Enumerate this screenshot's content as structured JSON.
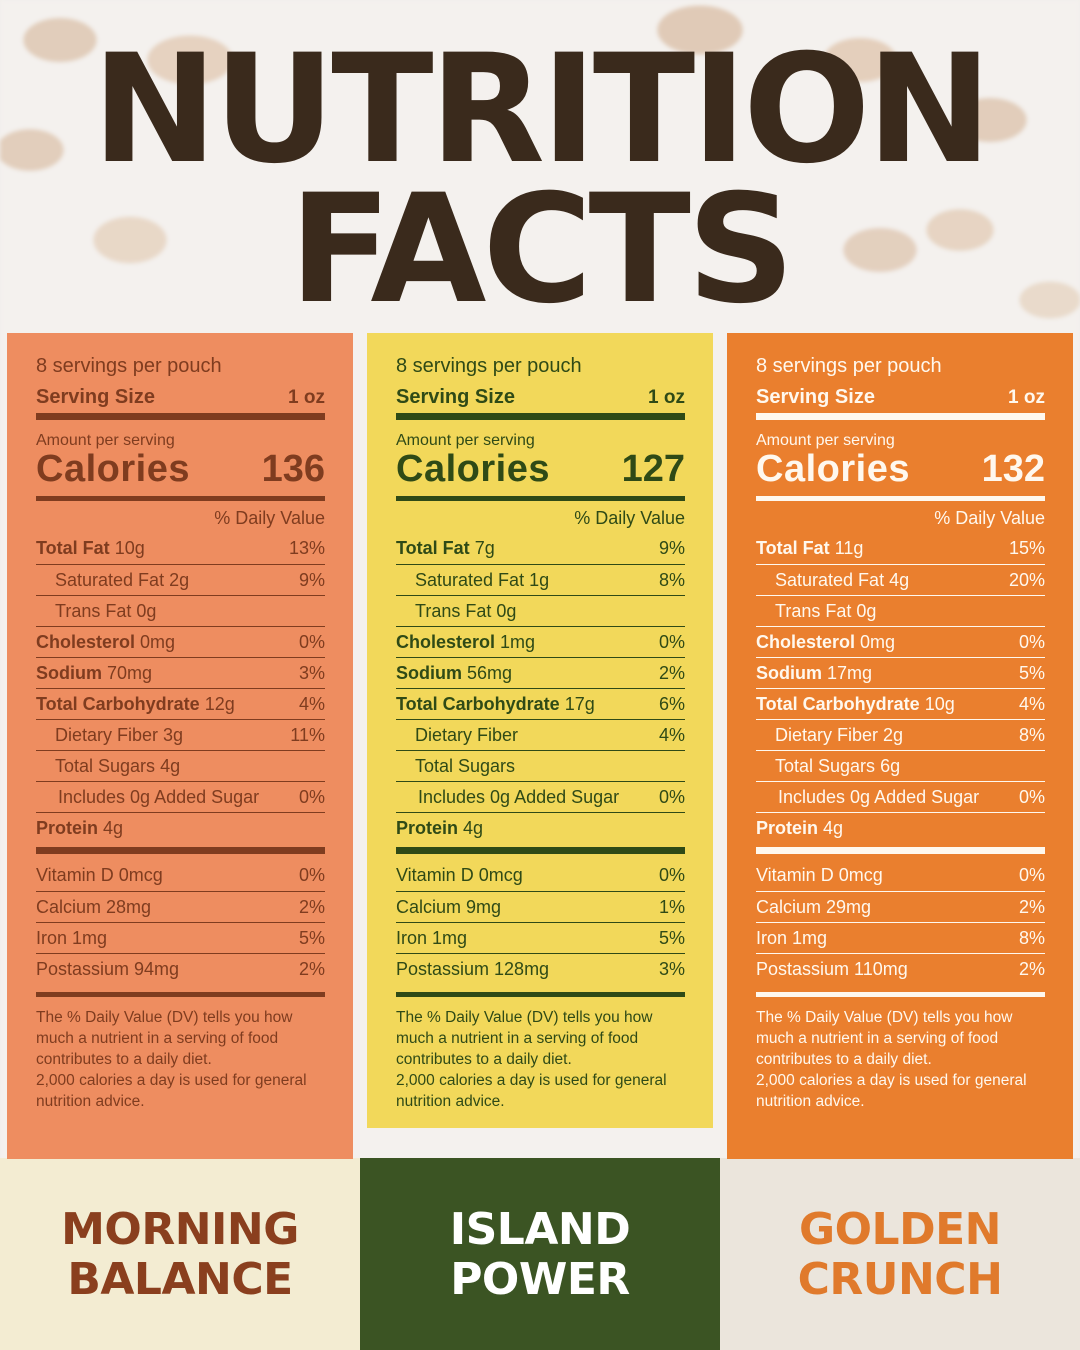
{
  "title": {
    "line1": "NUTRITION",
    "line2": "FACTS"
  },
  "labels": {
    "amount_per_serving": "Amount per serving",
    "calories": "Calories",
    "serving_size": "Serving Size",
    "daily_value": "% Daily Value",
    "footnote_1": "The % Daily Value (DV) tells you how much a nutrient in a serving of food contributes to a daily diet.",
    "footnote_2": "2,000 calories a day is used for general nutrition advice."
  },
  "products": [
    {
      "name_line1": "MORNING",
      "name_line2": "BALANCE",
      "servings": "8 servings per pouch",
      "serving_size": "1 oz",
      "calories": "136",
      "total_fat": "10g",
      "total_fat_dv": "13%",
      "sat_fat": "2g",
      "sat_fat_dv": "9%",
      "trans_fat": "0g",
      "cholesterol": "0mg",
      "cholesterol_dv": "0%",
      "sodium": "70mg",
      "sodium_dv": "3%",
      "carb": "12g",
      "carb_dv": "4%",
      "fiber": "3g",
      "fiber_dv": "11%",
      "sugars": "4g",
      "added_sugar": "Includes 0g Added Sugar",
      "added_sugar_dv": "0%",
      "protein": "4g",
      "vit_d": "Vitamin D 0mcg",
      "vit_d_dv": "0%",
      "calcium": "Calcium 28mg",
      "calcium_dv": "2%",
      "iron": "Iron 1mg",
      "iron_dv": "5%",
      "potassium": "Postassium 94mg",
      "potassium_dv": "2%"
    },
    {
      "name_line1": "ISLAND",
      "name_line2": "POWER",
      "servings": "8 servings per pouch",
      "serving_size": "1 oz",
      "calories": "127",
      "total_fat": "7g",
      "total_fat_dv": "9%",
      "sat_fat": "1g",
      "sat_fat_dv": "8%",
      "trans_fat": "0g",
      "cholesterol": "1mg",
      "cholesterol_dv": "0%",
      "sodium": "56mg",
      "sodium_dv": "2%",
      "carb": "17g",
      "carb_dv": "6%",
      "fiber": "",
      "fiber_dv": "4%",
      "sugars": "",
      "added_sugar": "Includes 0g Added Sugar",
      "added_sugar_dv": "0%",
      "protein": "4g",
      "vit_d": "Vitamin D 0mcg",
      "vit_d_dv": "0%",
      "calcium": "Calcium 9mg",
      "calcium_dv": "1%",
      "iron": "Iron 1mg",
      "iron_dv": "5%",
      "potassium": "Postassium 128mg",
      "potassium_dv": "3%"
    },
    {
      "name_line1": "GOLDEN",
      "name_line2": "CRUNCH",
      "servings": "8 servings per pouch",
      "serving_size": "1 oz",
      "calories": "132",
      "total_fat": "11g",
      "total_fat_dv": "15%",
      "sat_fat": "4g",
      "sat_fat_dv": "20%",
      "trans_fat": "0g",
      "cholesterol": "0mg",
      "cholesterol_dv": "0%",
      "sodium": "17mg",
      "sodium_dv": "5%",
      "carb": "10g",
      "carb_dv": "4%",
      "fiber": "2g",
      "fiber_dv": "8%",
      "sugars": "6g",
      "added_sugar": "Includes 0g Added Sugar",
      "added_sugar_dv": "0%",
      "protein": "4g",
      "vit_d": "Vitamin D 0mcg",
      "vit_d_dv": "0%",
      "calcium": "Calcium 29mg",
      "calcium_dv": "2%",
      "iron": "Iron 1mg",
      "iron_dv": "8%",
      "potassium": "Postassium 110mg",
      "potassium_dv": "2%"
    }
  ],
  "nutrient_names": {
    "total_fat": "Total Fat",
    "sat_fat": "Saturated Fat",
    "trans_fat": "Trans Fat",
    "cholesterol": "Cholesterol",
    "sodium": "Sodium",
    "carb": "Total Carbohydrate",
    "fiber": "Dietary Fiber",
    "sugars": "Total Sugars",
    "protein": "Protein"
  },
  "colors": {
    "morning_balance": "#ee8d60",
    "island_power": "#f2d85a",
    "golden_crunch": "#ea7f2e",
    "title": "#3a2a1c"
  }
}
